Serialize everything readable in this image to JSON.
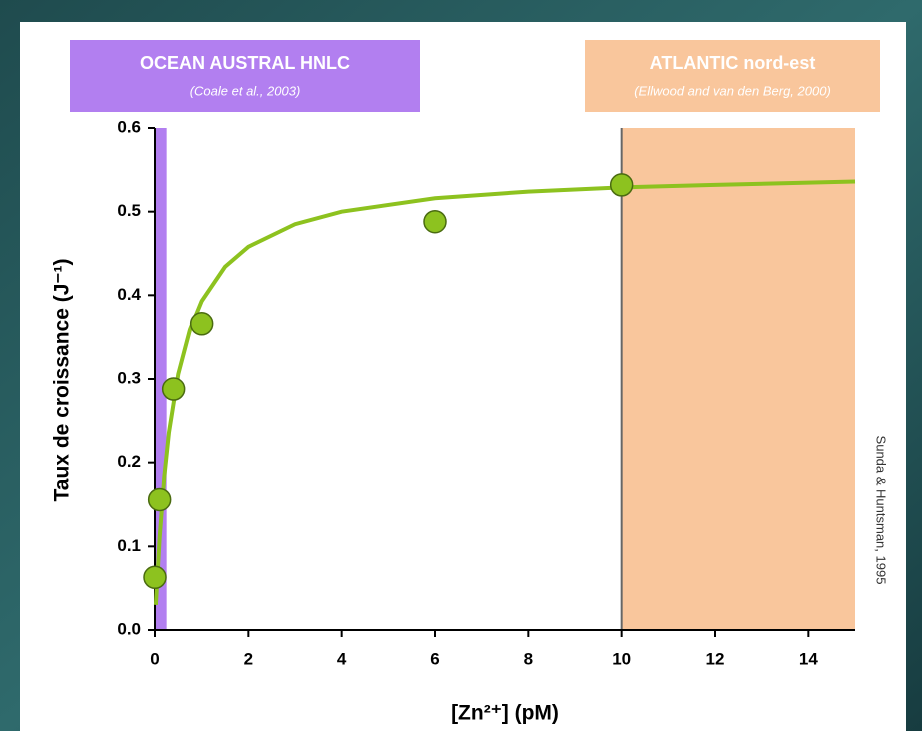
{
  "chart_data": {
    "type": "scatter",
    "y_label": "Taux de croissance (J⁻¹)",
    "x_label": "[Zn²⁺] (pM)",
    "credit": "Sunda & Huntsman, 1995",
    "xlim": [
      0,
      15
    ],
    "ylim": [
      0,
      0.6
    ],
    "xticks": [
      0,
      2,
      4,
      6,
      8,
      10,
      12,
      14
    ],
    "yticks": [
      {
        "value": 0,
        "label": "0.0"
      },
      0.1,
      0.2,
      0.3,
      0.4,
      0.5,
      0.6
    ],
    "regions": [
      {
        "label": "OCEAN AUSTRAL HNLC",
        "source": "(Coale et al., 2003)",
        "x": [
          0,
          0.25
        ],
        "color": "#b27ff0"
      },
      {
        "label": "ATLANTIC nord-est",
        "source": "(Ellwood and van den Berg, 2000)",
        "x": [
          10,
          15
        ],
        "color": "#f9c69c"
      }
    ],
    "series": [
      {
        "kind": "line",
        "color": "#8dc21f",
        "x": [
          0.02,
          0.05,
          0.1,
          0.2,
          0.3,
          0.5,
          0.75,
          1,
          1.5,
          2,
          3,
          4,
          6,
          8,
          10,
          12,
          15
        ],
        "values": [
          0.03,
          0.061,
          0.11,
          0.183,
          0.236,
          0.306,
          0.359,
          0.393,
          0.434,
          0.458,
          0.485,
          0.5,
          0.516,
          0.524,
          0.529,
          0.532,
          0.536
        ]
      },
      {
        "kind": "points",
        "color": "#8dc21f",
        "x": [
          0,
          0.1,
          0.4,
          1,
          6,
          10
        ],
        "values": [
          0.063,
          0.156,
          0.288,
          0.366,
          0.488,
          0.532
        ]
      }
    ]
  }
}
